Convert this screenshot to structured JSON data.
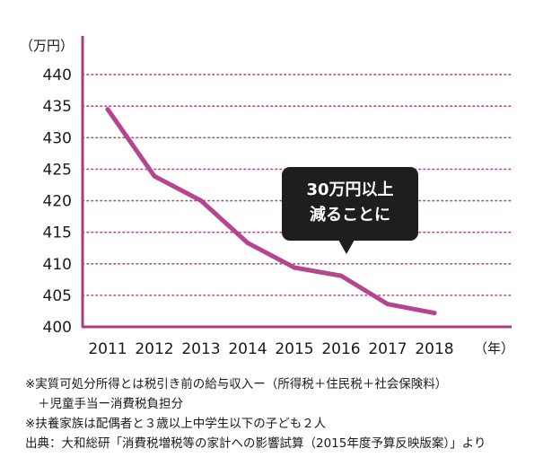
{
  "chart_data": {
    "type": "line",
    "y_unit": "（万円）",
    "x_unit": "（年）",
    "categories": [
      "2011",
      "2012",
      "2013",
      "2014",
      "2015",
      "2016",
      "2017",
      "2018"
    ],
    "series": [
      {
        "values": [
          434.5,
          423.9,
          420.0,
          413.3,
          409.4,
          408.1,
          403.6,
          402.2
        ]
      }
    ],
    "yticks": [
      400,
      405,
      410,
      415,
      420,
      425,
      430,
      435,
      440
    ],
    "ylim": [
      400,
      444
    ],
    "grid": true,
    "annotation": {
      "lines": [
        "30万円以上",
        "減ることに"
      ],
      "target": "2016"
    },
    "colors": {
      "line": "#b4458e",
      "axis": "#a43f82",
      "grid": "#b04a8b",
      "callout": "#1e1e1e"
    }
  },
  "notes": [
    "※実質可処分所得とは税引き前の給与収入ー（所得税＋住民税＋社会保険料）",
    "＋児童手当ー消費税負担分",
    "※扶養家族は配偶者と３歳以上中学生以下の子ども２人",
    "出典：大和総研「消費税増税等の家計への影響試算（2015年度予算反映版案）」より"
  ]
}
